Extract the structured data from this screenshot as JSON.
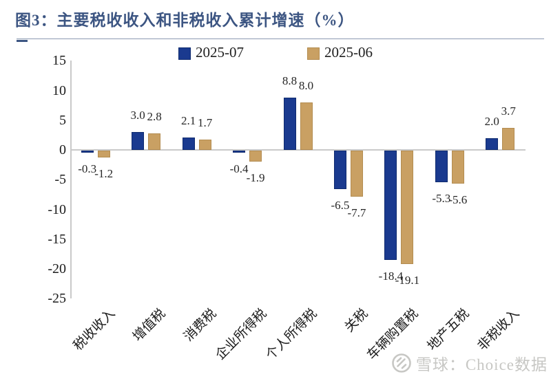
{
  "header": {
    "title": "图3：主要税收收入和非税收入累计增速（%）"
  },
  "watermark": {
    "brand": "雪球：Choice数据",
    "icon": "snowball-logo-icon",
    "color": "#c7c7c4"
  },
  "chart_data": {
    "type": "bar",
    "title": "主要税收收入和非税收入累计增速（%）",
    "categories": [
      "税收收入",
      "增值税",
      "消费税",
      "企业所得税",
      "个人所得税",
      "关税",
      "车辆购置税",
      "地产五税",
      "非税收入"
    ],
    "series": [
      {
        "name": "2025-07",
        "color": "#1a3a8f",
        "border_color": "#0e2a6e",
        "values": [
          -0.3,
          3.0,
          2.1,
          -0.4,
          8.8,
          -6.5,
          -18.4,
          -5.3,
          2.0
        ]
      },
      {
        "name": "2025-06",
        "color": "#c9a063",
        "border_color": "#b38c50",
        "values": [
          -1.2,
          2.8,
          1.7,
          -1.9,
          8.0,
          -7.7,
          -19.1,
          -5.6,
          3.7
        ]
      }
    ],
    "ylim": [
      -25,
      15
    ],
    "yticks": [
      15,
      10,
      5,
      0,
      -5,
      -10,
      -15,
      -20,
      -25
    ],
    "legend_position": "top-center",
    "grid": false,
    "data_labels": true,
    "data_label_decimals": 1,
    "axis_color": "#c9c9c9",
    "xlabel": "",
    "ylabel": ""
  }
}
